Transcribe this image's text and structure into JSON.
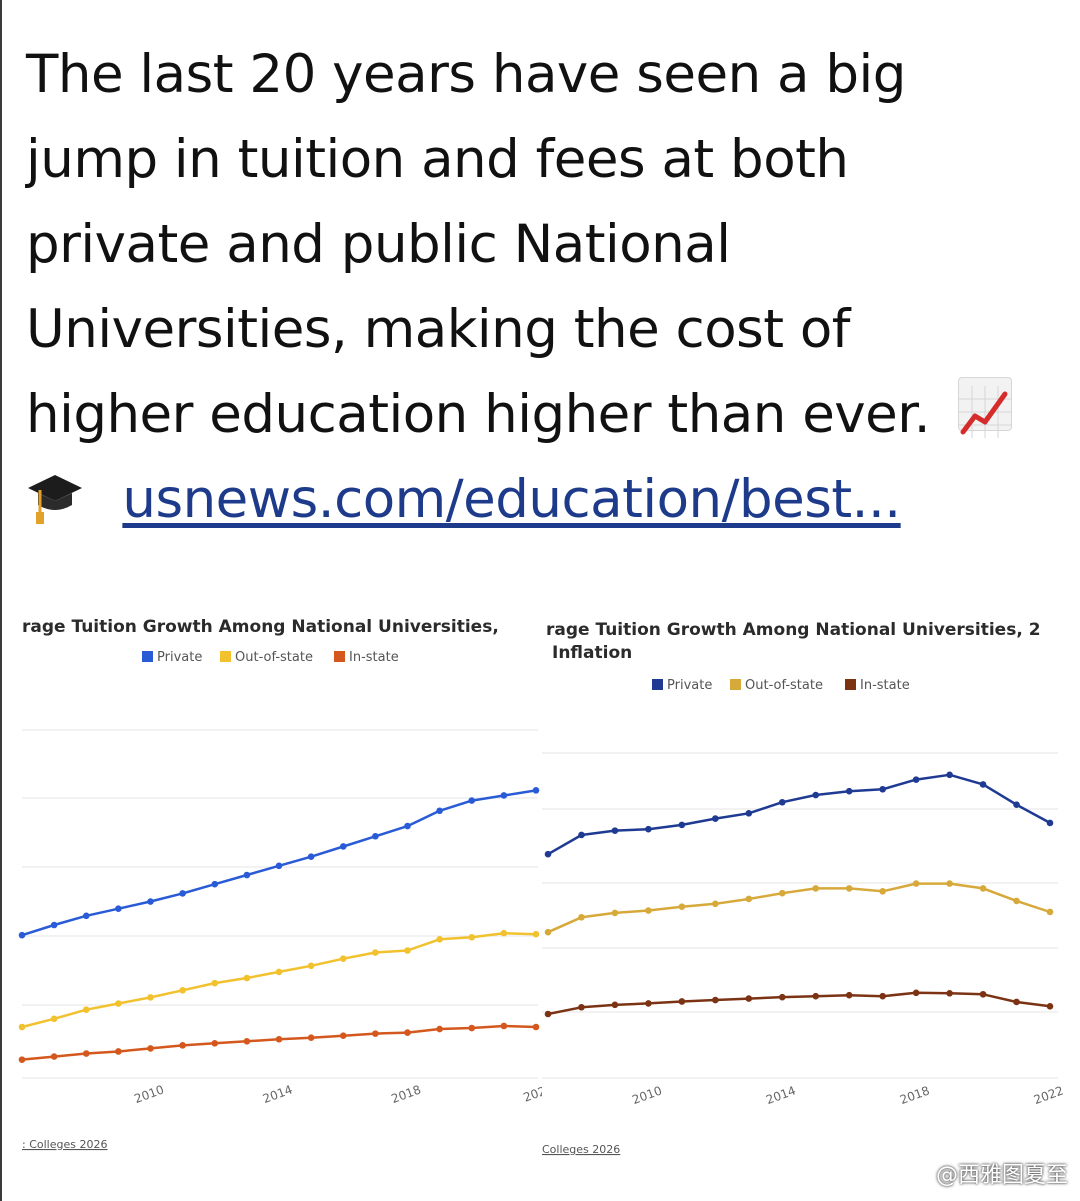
{
  "tweet": {
    "lines": [
      "The last 20 years have seen a big",
      "jump in tuition and fees at both",
      "private and public National",
      "Universities, making the cost of",
      "higher education higher than ever."
    ],
    "link_text": "usnews.com/education/best...",
    "emoji_after_text": "chart-increasing-icon",
    "emoji_before_link": "graduation-cap-icon"
  },
  "watermark": "@西雅图夏至",
  "colors": {
    "left_private": "#2a5bd7",
    "left_out_of_state": "#f2c12e",
    "left_in_state": "#d4581e",
    "right_private": "#1f3a93",
    "right_out_of_state": "#d7a93a",
    "right_in_state": "#7b3314"
  },
  "chart_data": [
    {
      "type": "line",
      "title": "rage Tuition Growth Among National Universities,",
      "legend": [
        "Private",
        "Out-of-state",
        "In-state"
      ],
      "legend_position": "top",
      "x_ticks": [
        "2010",
        "2014",
        "2018",
        "202"
      ],
      "source": ": Colleges 2026",
      "x": [
        2006,
        2007,
        2008,
        2009,
        2010,
        2011,
        2012,
        2013,
        2014,
        2015,
        2016,
        2017,
        2018,
        2019,
        2020,
        2021,
        2022
      ],
      "ylim": [
        0,
        80
      ],
      "grid": true,
      "series": [
        {
          "name": "Private",
          "values": [
            28.0,
            30.0,
            31.8,
            33.2,
            34.6,
            36.2,
            38.0,
            39.8,
            41.6,
            43.4,
            45.4,
            47.4,
            49.4,
            52.4,
            54.4,
            55.4,
            56.4
          ]
        },
        {
          "name": "Out-of-state",
          "values": [
            10.0,
            11.6,
            13.4,
            14.6,
            15.8,
            17.2,
            18.6,
            19.6,
            20.8,
            22.0,
            23.4,
            24.6,
            25.0,
            27.2,
            27.6,
            28.4,
            28.2
          ]
        },
        {
          "name": "In-state",
          "values": [
            3.6,
            4.2,
            4.8,
            5.2,
            5.8,
            6.4,
            6.8,
            7.2,
            7.6,
            7.9,
            8.3,
            8.7,
            8.9,
            9.6,
            9.8,
            10.2,
            10.0
          ]
        }
      ]
    },
    {
      "type": "line",
      "title": "rage Tuition Growth Among National Universities, 2",
      "subtitle": "Inflation",
      "legend": [
        "Private",
        "Out-of-state",
        "In-state"
      ],
      "legend_position": "top",
      "x_ticks": [
        "2010",
        "2014",
        "2018",
        "2022"
      ],
      "source": "Colleges 2026",
      "x": [
        2007,
        2008,
        2009,
        2010,
        2011,
        2012,
        2013,
        2014,
        2015,
        2016,
        2017,
        2018,
        2019,
        2020,
        2021,
        2022
      ],
      "ylim": [
        0,
        80
      ],
      "grid": true,
      "series": [
        {
          "name": "Private",
          "values": [
            46.5,
            50.5,
            51.4,
            51.7,
            52.6,
            53.9,
            55.0,
            57.3,
            58.8,
            59.6,
            60.0,
            62.0,
            63.0,
            61.0,
            56.8,
            53.0
          ]
        },
        {
          "name": "Out-of-state",
          "values": [
            30.3,
            33.4,
            34.3,
            34.8,
            35.6,
            36.2,
            37.2,
            38.4,
            39.4,
            39.4,
            38.8,
            40.4,
            40.4,
            39.4,
            36.8,
            34.5
          ]
        },
        {
          "name": "In-state",
          "values": [
            13.3,
            14.7,
            15.2,
            15.5,
            15.9,
            16.2,
            16.5,
            16.8,
            17.0,
            17.2,
            17.0,
            17.7,
            17.6,
            17.4,
            15.8,
            14.9
          ]
        }
      ]
    }
  ]
}
